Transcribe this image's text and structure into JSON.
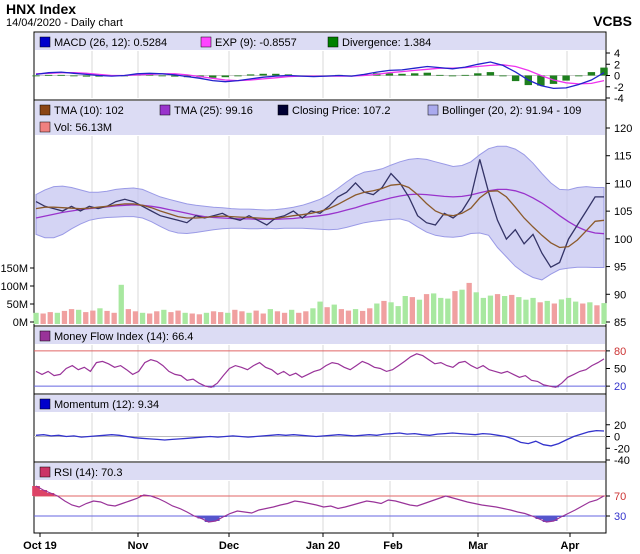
{
  "header": {
    "title": "HNX Index",
    "subtitle": "14/04/2020 - Daily chart",
    "brand": "VCBS"
  },
  "chart_data": [
    {
      "type": "bar",
      "title": "MACD",
      "legend": [
        {
          "label": "MACD (26, 12): 0.5284",
          "color": "#0000cc"
        },
        {
          "label": "EXP (9): -0.8557",
          "color": "#ff44ff"
        },
        {
          "label": "Divergence: 1.384",
          "color": "#008000"
        }
      ],
      "ylim": [
        -4,
        4
      ],
      "yticks": [
        "4",
        "2",
        "0",
        "-2",
        "-4"
      ],
      "series": [
        {
          "name": "MACD",
          "color": "#2222cc",
          "values": [
            0.2,
            0.5,
            0.6,
            0.4,
            0.2,
            0.0,
            -0.1,
            0.0,
            0.3,
            0.4,
            0.3,
            0.1,
            -0.2,
            -0.5,
            -0.9,
            -1.1,
            -0.9,
            -0.6,
            -0.3,
            -0.1,
            0.0,
            -0.1,
            -0.2,
            -0.1,
            0.0,
            -0.1,
            0.2,
            0.6,
            0.9,
            1.0,
            1.3,
            1.6,
            1.4,
            1.2,
            1.5,
            2.0,
            2.4,
            1.8,
            0.6,
            -0.8,
            -1.8,
            -2.3,
            -2.2,
            -1.6,
            -0.8,
            0.5
          ]
        },
        {
          "name": "EXP",
          "color": "#ee33ee",
          "values": [
            0.3,
            0.4,
            0.5,
            0.5,
            0.4,
            0.2,
            0.0,
            0.0,
            0.1,
            0.2,
            0.3,
            0.3,
            0.1,
            -0.2,
            -0.5,
            -0.8,
            -0.9,
            -0.8,
            -0.6,
            -0.4,
            -0.2,
            -0.1,
            -0.1,
            -0.1,
            -0.1,
            -0.1,
            0.0,
            0.2,
            0.5,
            0.7,
            0.9,
            1.1,
            1.3,
            1.3,
            1.4,
            1.6,
            1.8,
            1.9,
            1.6,
            0.9,
            0.0,
            -0.8,
            -1.3,
            -1.5,
            -1.4,
            -0.9
          ]
        },
        {
          "name": "Divergence",
          "color": "#1e7f1e",
          "values": [
            -0.1,
            0.1,
            0.1,
            -0.1,
            -0.2,
            -0.2,
            -0.1,
            0.0,
            0.2,
            0.2,
            0.0,
            -0.2,
            -0.3,
            -0.3,
            -0.4,
            -0.3,
            0.0,
            0.2,
            0.3,
            0.3,
            0.2,
            0.0,
            -0.1,
            0.0,
            0.1,
            0.0,
            0.2,
            0.4,
            0.4,
            0.3,
            0.4,
            0.5,
            0.1,
            -0.1,
            0.1,
            0.4,
            0.6,
            -0.1,
            -1.0,
            -1.7,
            -1.8,
            -1.5,
            -0.9,
            -0.1,
            0.6,
            1.4
          ]
        }
      ]
    },
    {
      "type": "line",
      "title": "Price",
      "legend": [
        {
          "label": "TMA (10): 102",
          "color": "#8b4513"
        },
        {
          "label": "TMA (25): 99.16",
          "color": "#9933cc"
        },
        {
          "label": "Closing Price: 107.2",
          "color": "#000033"
        },
        {
          "label": "Bollinger (20, 2): 91.94 - 109",
          "color": "#aaaaee"
        },
        {
          "label": "Vol: 56.13M",
          "color": "#f08080"
        }
      ],
      "ylim": [
        85,
        120
      ],
      "yticks": [
        "120",
        "115",
        "110",
        "105",
        "100",
        "95",
        "90",
        "85"
      ],
      "vol_ticks": [
        "150M",
        "100M",
        "50M",
        "0M"
      ],
      "vol_max": 150,
      "series": [
        {
          "name": "Closing Price",
          "color": "#333366",
          "values": [
            106,
            105,
            104.5,
            104,
            105,
            104,
            105,
            104.5,
            105,
            106,
            106.5,
            106,
            105,
            104,
            103,
            102.5,
            102,
            101.5,
            103,
            102.5,
            103,
            103.5,
            102.5,
            102,
            103,
            102,
            101,
            102.5,
            103,
            104,
            102.5,
            104,
            103.5,
            105,
            107,
            108,
            110,
            108,
            107.5,
            109,
            112,
            110,
            107,
            103,
            101.5,
            101,
            103.5,
            102.5,
            104,
            107,
            115,
            108,
            102,
            98,
            100,
            97,
            99,
            95,
            92,
            93,
            98,
            101,
            104,
            107,
            107
          ]
        },
        {
          "name": "TMA (10)",
          "color": "#8b5a2b",
          "values": [
            104.5,
            104.8,
            104.8,
            104.7,
            104.6,
            104.5,
            104.6,
            104.8,
            105,
            105.3,
            105.5,
            105.5,
            105.2,
            104.7,
            104,
            103.4,
            102.8,
            102.5,
            102.5,
            102.6,
            102.8,
            102.9,
            102.8,
            102.7,
            102.6,
            102.5,
            102.4,
            102.4,
            102.7,
            103,
            103.2,
            103.5,
            103.9,
            104.5,
            105.4,
            106.4,
            107.4,
            108,
            108.3,
            108.8,
            109.5,
            109.7,
            109,
            107.5,
            105.6,
            104,
            103.2,
            103,
            103.5,
            104.6,
            106.8,
            108.2,
            108.3,
            107,
            104.8,
            102.5,
            100.6,
            98.8,
            97.2,
            96.2,
            96.4,
            97.8,
            99.8,
            101.8,
            102
          ]
        },
        {
          "name": "TMA (25)",
          "color": "#9933cc",
          "values": [
            102.5,
            102.9,
            103.3,
            103.7,
            104,
            104.3,
            104.5,
            104.7,
            104.9,
            105.1,
            105.2,
            105.3,
            105.2,
            105,
            104.7,
            104.3,
            103.9,
            103.5,
            103.1,
            102.8,
            102.6,
            102.5,
            102.4,
            102.3,
            102.3,
            102.2,
            102.2,
            102.2,
            102.3,
            102.4,
            102.6,
            102.8,
            103,
            103.3,
            103.7,
            104.2,
            104.7,
            105.3,
            105.8,
            106.3,
            106.8,
            107.2,
            107.5,
            107.6,
            107.5,
            107.3,
            107.1,
            107,
            107.1,
            107.4,
            107.9,
            108.3,
            108.6,
            108.6,
            108.3,
            107.7,
            106.8,
            105.7,
            104.4,
            103,
            101.7,
            100.6,
            99.8,
            99.3,
            99.16
          ]
        },
        {
          "name": "Bollinger upper",
          "color": "#aaaaee",
          "values": [
            107.5,
            108.5,
            109.2,
            109.3,
            109,
            108.5,
            108,
            108,
            108.2,
            108.6,
            108.8,
            108.9,
            108.6,
            107.8,
            107,
            106.5,
            106,
            105.5,
            105.2,
            105,
            104.8,
            104.7,
            104.5,
            104.4,
            104.4,
            104.3,
            104.2,
            104.3,
            104.5,
            104.8,
            105.2,
            105.8,
            106.5,
            107.5,
            108.8,
            110.2,
            111.5,
            112.3,
            112.6,
            113,
            113.8,
            114.5,
            115,
            115.2,
            115,
            114.5,
            114,
            113.5,
            113.7,
            114.5,
            116,
            117.3,
            117.8,
            117.8,
            117.2,
            116,
            114.2,
            112,
            110,
            108.6,
            108.5,
            109,
            109.2,
            109,
            109
          ]
        },
        {
          "name": "Bollinger lower",
          "color": "#aaaaee",
          "values": [
            99,
            98.3,
            98.3,
            99,
            100.2,
            101.2,
            102,
            102.4,
            102.6,
            102.7,
            102.8,
            102.8,
            102.5,
            101.7,
            100.7,
            99.8,
            99.3,
            99.2,
            99.4,
            99.7,
            100,
            100.2,
            100.3,
            100.3,
            100.2,
            100.2,
            100.3,
            100.2,
            100.3,
            100.3,
            100.3,
            100.2,
            100.1,
            100,
            100.1,
            100.5,
            101,
            101.5,
            101.8,
            102,
            102.2,
            102.3,
            101.8,
            100.6,
            99.5,
            98.8,
            98.5,
            98.4,
            98.6,
            99.2,
            99.3,
            98.8,
            96.2,
            94.2,
            92.2,
            90.8,
            89.8,
            89.3,
            90.5,
            91.5,
            91.8,
            92,
            92,
            91.94,
            91.94
          ]
        },
        {
          "name": "Vol",
          "color": "#f08080",
          "values": [
            30,
            28,
            32,
            30,
            35,
            40,
            38,
            32,
            36,
            42,
            35,
            30,
            105,
            40,
            34,
            30,
            28,
            34,
            38,
            32,
            36,
            30,
            28,
            26,
            30,
            34,
            32,
            30,
            38,
            34,
            30,
            36,
            28,
            40,
            34,
            30,
            38,
            30,
            34,
            42,
            60,
            45,
            52,
            40,
            36,
            40,
            35,
            42,
            55,
            62,
            58,
            48,
            75,
            72,
            65,
            80,
            82,
            70,
            68,
            88,
            92,
            110,
            85,
            70,
            76,
            80,
            75,
            78,
            72,
            65,
            70,
            58,
            62,
            55,
            66,
            70,
            60,
            55,
            58,
            50,
            56
          ]
        }
      ]
    },
    {
      "type": "line",
      "title": "Money Flow Index",
      "legend": [
        {
          "label": "Money Flow Index (14): 66.4",
          "color": "#993399"
        }
      ],
      "ylim": [
        10,
        90
      ],
      "yticks": [
        "80",
        "50",
        "20"
      ],
      "series": [
        {
          "name": "MFI",
          "color": "#993399",
          "values": [
            45,
            40,
            45,
            38,
            40,
            50,
            55,
            48,
            52,
            45,
            60,
            62,
            58,
            52,
            55,
            48,
            40,
            45,
            60,
            65,
            62,
            55,
            45,
            40,
            38,
            30,
            32,
            25,
            20,
            18,
            25,
            38,
            50,
            55,
            52,
            48,
            55,
            60,
            52,
            48,
            40,
            45,
            38,
            42,
            35,
            40,
            45,
            48,
            55,
            60,
            58,
            52,
            48,
            55,
            62,
            58,
            52,
            50,
            45,
            48,
            55,
            62,
            70,
            75,
            72,
            65,
            58,
            60,
            55,
            52,
            60,
            62,
            55,
            50,
            55,
            48,
            45,
            42,
            45,
            40,
            35,
            38,
            30,
            28,
            22,
            20,
            18,
            25,
            35,
            40,
            45,
            48,
            55,
            60,
            66.4
          ]
        }
      ]
    },
    {
      "type": "line",
      "title": "Momentum",
      "legend": [
        {
          "label": "Momentum (12): 9.34",
          "color": "#0000cc"
        }
      ],
      "ylim": [
        -40,
        40
      ],
      "yticks": [
        "20",
        "0",
        "-20",
        "-40"
      ],
      "series": [
        {
          "name": "Momentum",
          "color": "#3333cc",
          "values": [
            2,
            3,
            1,
            2,
            0,
            1,
            -1,
            0,
            1,
            2,
            3,
            2,
            0,
            -2,
            -3,
            -4,
            -5,
            -6,
            -5,
            -4,
            -3,
            -2,
            -1,
            0,
            -1,
            0,
            1,
            0,
            -1,
            0,
            1,
            2,
            3,
            2,
            3,
            2,
            1,
            0,
            1,
            2,
            3,
            2,
            1,
            2,
            3,
            2,
            4,
            5,
            6,
            4,
            5,
            3,
            2,
            4,
            5,
            6,
            5,
            4,
            3,
            5,
            4,
            2,
            0,
            -4,
            -10,
            -12,
            -8,
            -14,
            -16,
            -12,
            -6,
            0,
            4,
            8,
            10,
            9.34
          ]
        }
      ]
    },
    {
      "type": "line",
      "title": "RSI",
      "legend": [
        {
          "label": "RSI (14): 70.3",
          "color": "#cc3366"
        }
      ],
      "ylim": [
        0,
        100
      ],
      "yticks": [
        "70",
        "30"
      ],
      "x_labels": [
        "Oct 19",
        "Nov",
        "Dec",
        "Jan 20",
        "Feb",
        "Mar",
        "Apr"
      ],
      "series": [
        {
          "name": "RSI",
          "color": "#993399",
          "values": [
            90,
            82,
            76,
            70,
            60,
            52,
            48,
            55,
            60,
            58,
            52,
            50,
            55,
            60,
            65,
            72,
            70,
            65,
            58,
            50,
            45,
            38,
            30,
            25,
            18,
            20,
            28,
            35,
            40,
            38,
            36,
            42,
            45,
            48,
            52,
            55,
            60,
            58,
            55,
            52,
            48,
            50,
            45,
            48,
            52,
            56,
            60,
            58,
            55,
            62,
            60,
            56,
            52,
            50,
            55,
            60,
            65,
            70,
            66,
            62,
            58,
            55,
            52,
            50,
            48,
            45,
            42,
            38,
            35,
            30,
            24,
            18,
            20,
            28,
            35,
            42,
            50,
            58,
            62,
            70.3
          ]
        }
      ]
    }
  ]
}
